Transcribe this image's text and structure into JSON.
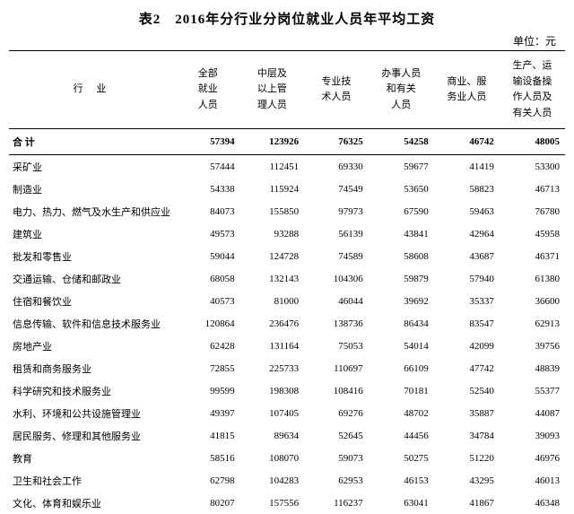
{
  "title": "表2　2016年分行业分岗位就业人员年平均工资",
  "unit": "单位：元",
  "columns": [
    "行 业",
    "全部\n就业\n人员",
    "中层及\n以上管\n理人员",
    "专业技\n术人员",
    "办事人员\n和有关\n人员",
    "商业、服\n务业人员",
    "生产、运\n输设备操\n作人员及\n有关人员"
  ],
  "total_row": {
    "label": "合  计",
    "values": [
      57394,
      123926,
      76325,
      54258,
      46742,
      48005
    ]
  },
  "rows": [
    {
      "label": "采矿业",
      "values": [
        57444,
        112451,
        69330,
        59677,
        41419,
        53300
      ]
    },
    {
      "label": "制造业",
      "values": [
        54338,
        115924,
        74549,
        53650,
        58823,
        46713
      ]
    },
    {
      "label": "电力、热力、燃气及水生产和供应业",
      "values": [
        84073,
        155850,
        97973,
        67590,
        59463,
        76780
      ]
    },
    {
      "label": "建筑业",
      "values": [
        49573,
        93288,
        56139,
        43841,
        42964,
        45958
      ]
    },
    {
      "label": "批发和零售业",
      "values": [
        59044,
        124728,
        74589,
        58608,
        43687,
        46371
      ]
    },
    {
      "label": "交通运输、仓储和邮政业",
      "values": [
        68058,
        132143,
        104306,
        59879,
        57940,
        61380
      ]
    },
    {
      "label": "住宿和餐饮业",
      "values": [
        40573,
        81000,
        46044,
        39692,
        35337,
        36600
      ]
    },
    {
      "label": "信息传输、软件和信息技术服务业",
      "values": [
        120864,
        236476,
        138736,
        86434,
        83547,
        62913
      ]
    },
    {
      "label": "房地产业",
      "values": [
        62428,
        131164,
        75053,
        54014,
        42099,
        39756
      ]
    },
    {
      "label": "租赁和商务服务业",
      "values": [
        72855,
        225733,
        110697,
        66109,
        47742,
        48839
      ]
    },
    {
      "label": "科学研究和技术服务业",
      "values": [
        99599,
        198308,
        108416,
        70181,
        52540,
        55377
      ]
    },
    {
      "label": "水利、环境和公共设施管理业",
      "values": [
        49397,
        107405,
        69276,
        48702,
        35887,
        44087
      ]
    },
    {
      "label": "居民服务、修理和其他服务业",
      "values": [
        41815,
        89634,
        52645,
        44456,
        34784,
        39093
      ]
    },
    {
      "label": "教育",
      "values": [
        58516,
        108070,
        59073,
        50275,
        51220,
        46976
      ]
    },
    {
      "label": "卫生和社会工作",
      "values": [
        62798,
        104283,
        62953,
        46153,
        43295,
        46013
      ]
    },
    {
      "label": "文化、体育和娱乐业",
      "values": [
        80207,
        157556,
        116237,
        63041,
        41867,
        46348
      ]
    }
  ]
}
